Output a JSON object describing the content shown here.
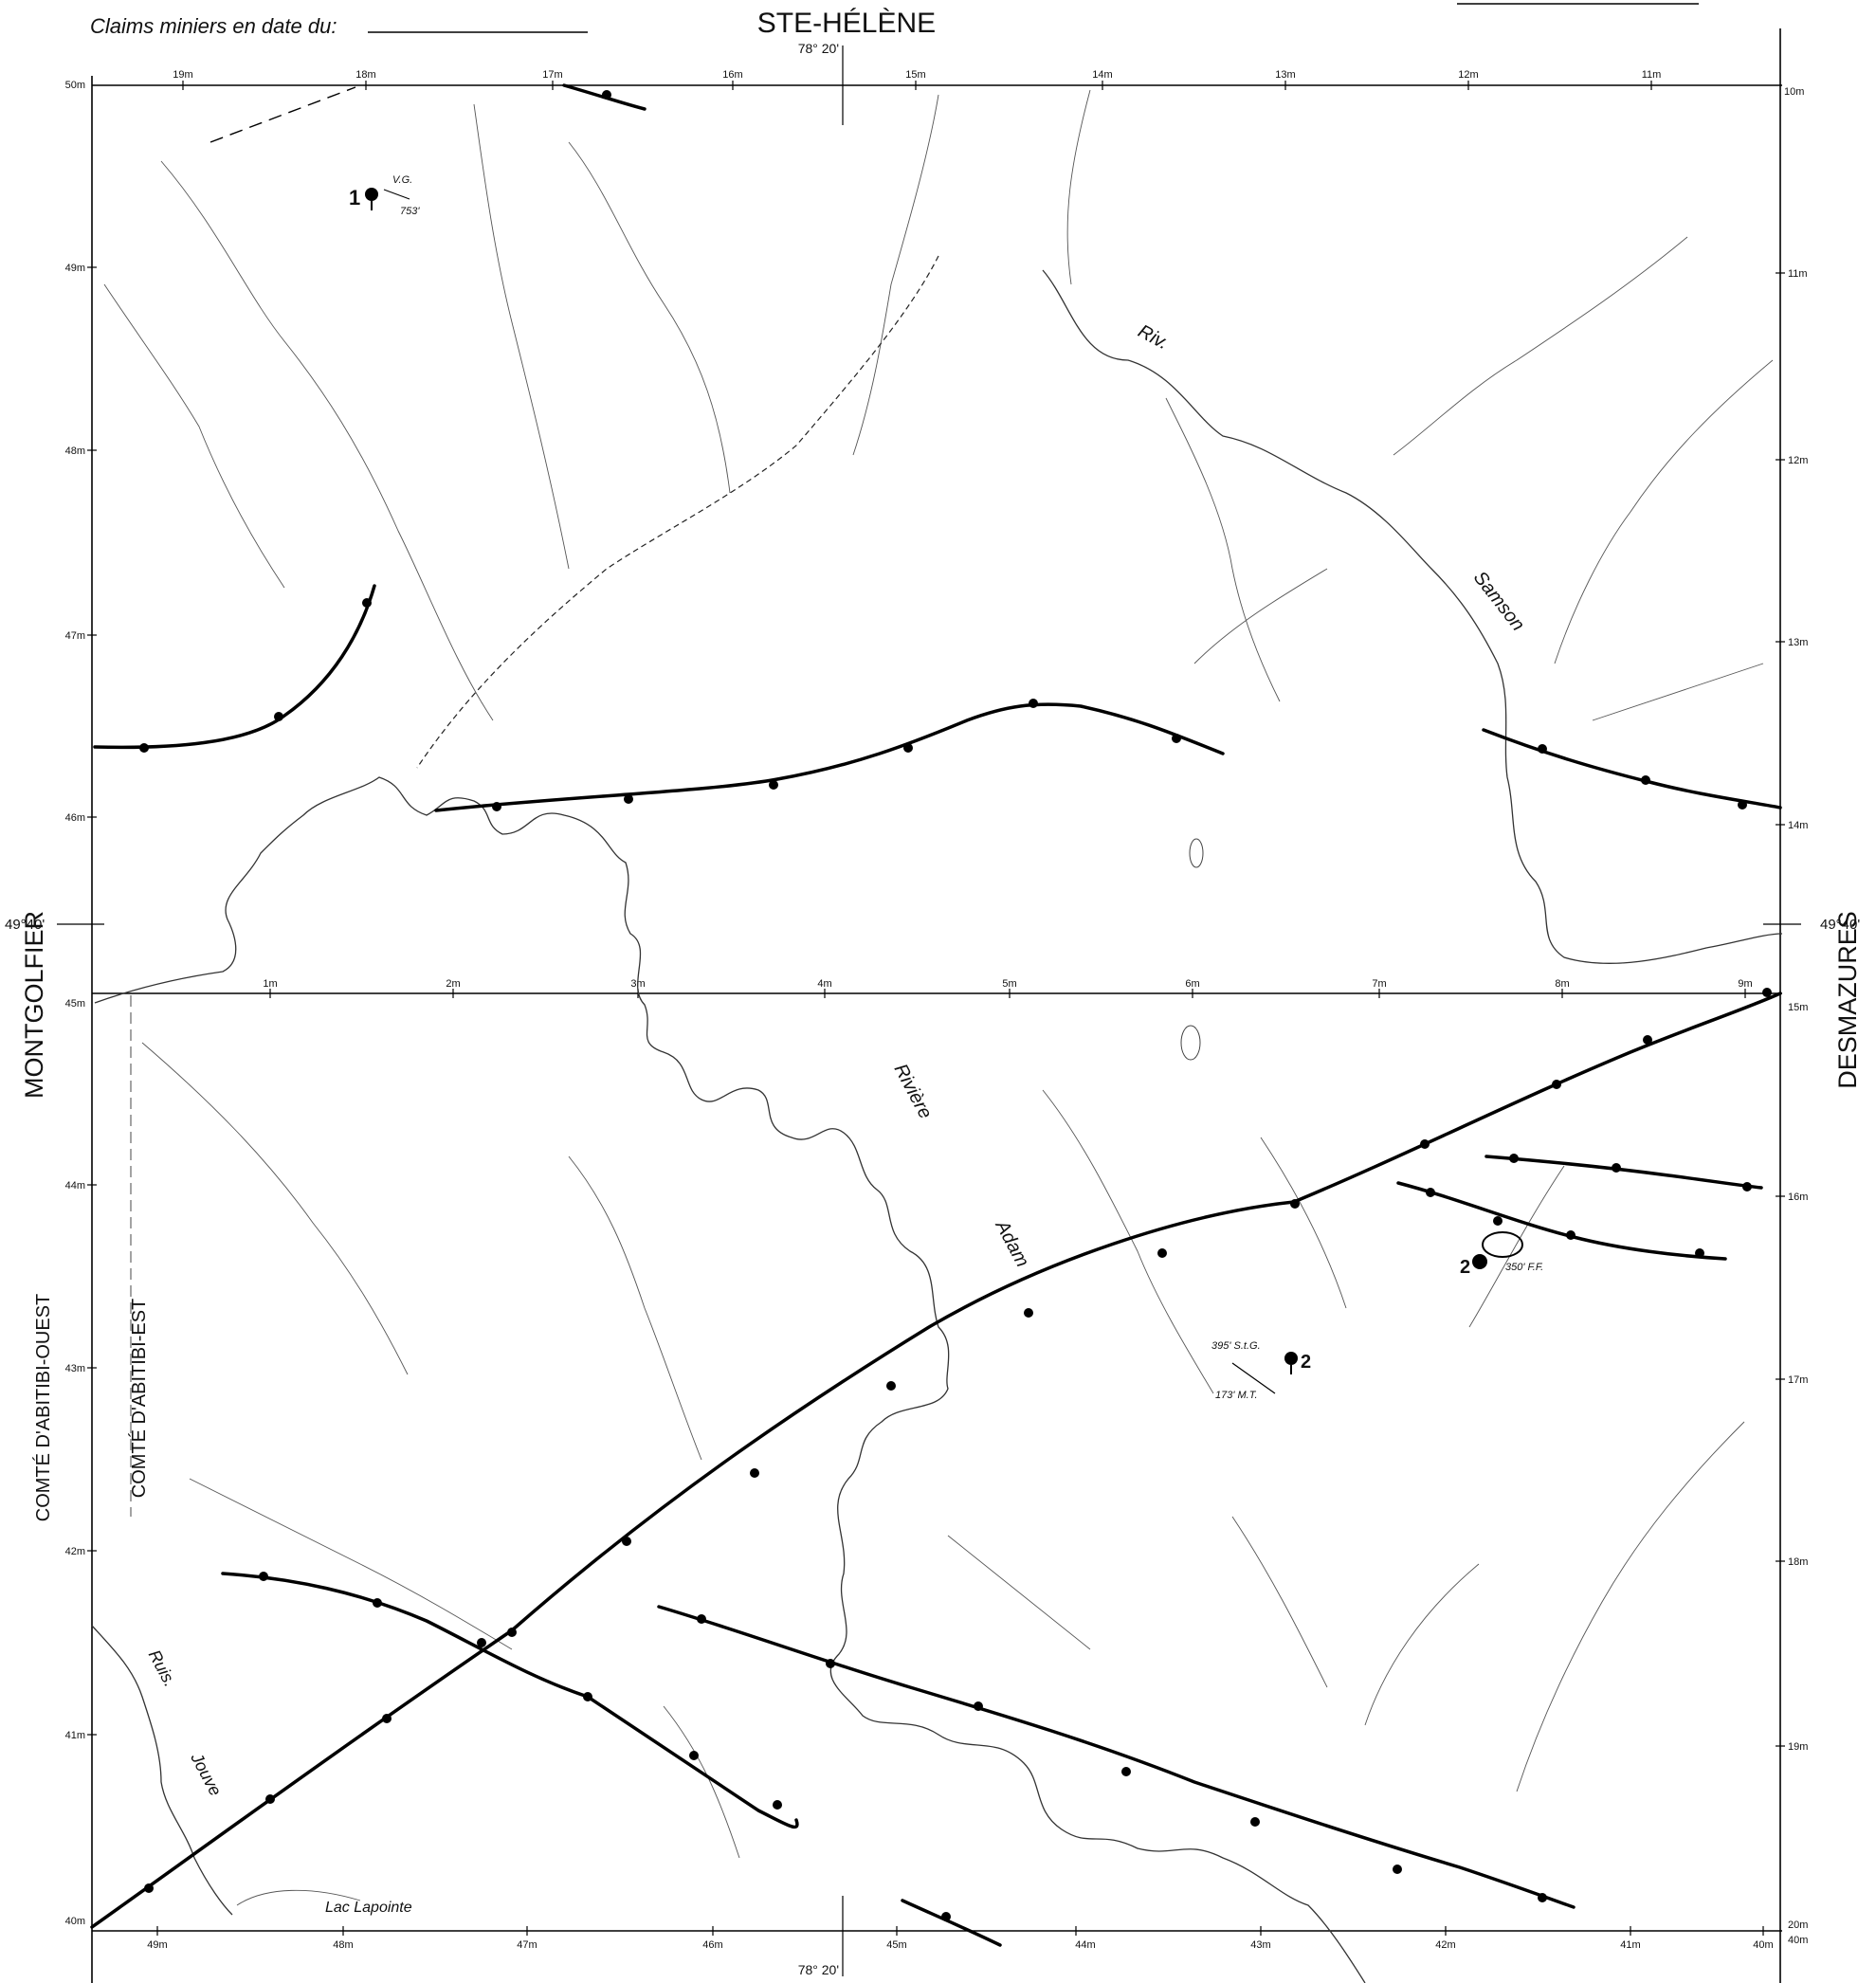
{
  "header": {
    "claims_label": "Claims miniers en date du:",
    "north_township": "STE-HÉLÈNE"
  },
  "townships": {
    "west": "MONTGOLFIER",
    "east": "DESMAZURES",
    "county_west": "COMTÉ D'ABITIBI-OUEST",
    "county_east": "COMTÉ D'ABITIBI-EST"
  },
  "coordinates": {
    "longitude_top": "78° 20'",
    "longitude_bottom": "78° 20'",
    "latitude_left": "49°40'",
    "latitude_right": "49°40'"
  },
  "left_scale": [
    "50m",
    "49m",
    "48m",
    "47m",
    "46m",
    "45m",
    "44m",
    "43m",
    "42m",
    "41m",
    "40m"
  ],
  "right_scale": [
    "10m",
    "11m",
    "12m",
    "13m",
    "14m",
    "15m",
    "16m",
    "17m",
    "18m",
    "19m",
    "20m",
    "40m"
  ],
  "top_scale": [
    "19m",
    "18m",
    "17m",
    "16m",
    "15m",
    "14m",
    "13m",
    "12m",
    "11m"
  ],
  "middle_scale": [
    "1m",
    "2m",
    "3m",
    "4m",
    "5m",
    "6m",
    "7m",
    "8m",
    "9m"
  ],
  "bottom_scale": [
    "49m",
    "48m",
    "47m",
    "46m",
    "45m",
    "44m",
    "43m",
    "42m",
    "41m",
    "40m"
  ],
  "water": {
    "riv_samson_1": "Riv.",
    "riv_samson_2": "Samson",
    "riviere_adam_1": "Rivière",
    "riviere_adam_2": "Adam",
    "ruis_jouve_1": "Ruis.",
    "ruis_jouve_2": "Jouve",
    "lac_lapointe": "Lac Lapointe"
  },
  "annotations": {
    "hole1_number": "1",
    "hole1_a": "V.G.",
    "hole1_b": "753'",
    "hole2_number": "2",
    "hole2_a": "395' S.t.G.",
    "hole2_b": "173' M.T.",
    "hole3_number": "2",
    "hole3_a": "350' F.F."
  }
}
